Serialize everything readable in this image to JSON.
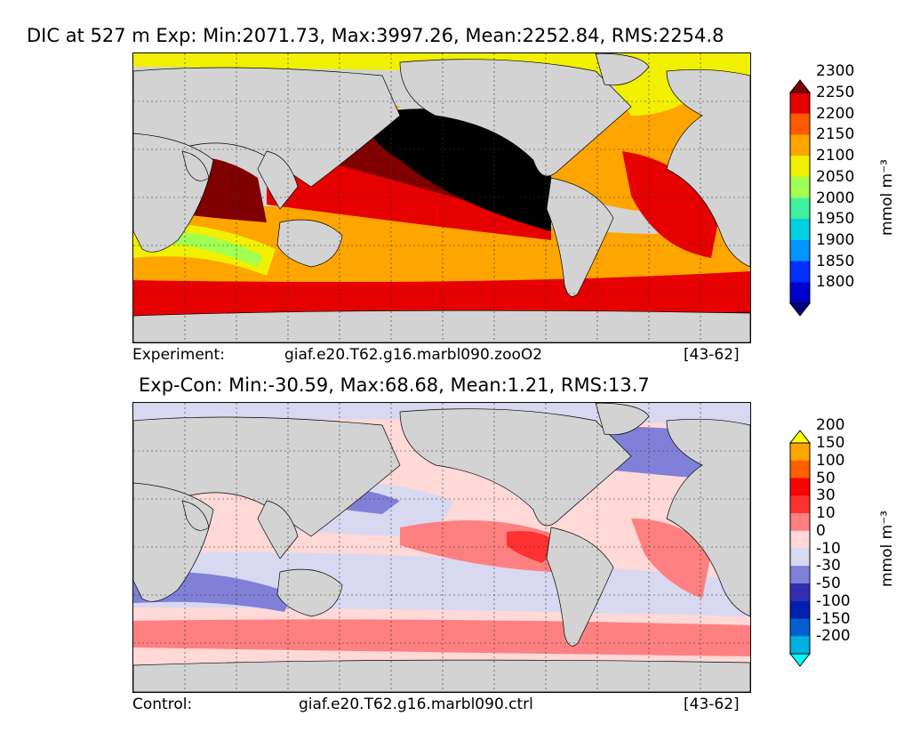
{
  "panels": [
    {
      "title": "DIC at 527 m Exp: Min:2071.73, Max:3997.26, Mean:2252.84, RMS:2254.8",
      "caption_label": "Experiment:",
      "caption_case": "giaf.e20.T62.g16.marbl090.zooO2",
      "caption_years": "[43-62]",
      "colorbar": {
        "levels": [
          "1800",
          "1850",
          "1900",
          "1950",
          "2000",
          "2050",
          "2100",
          "2150",
          "2200",
          "2250",
          "2300"
        ],
        "colors": [
          "#000080",
          "#0000cd",
          "#0030ff",
          "#0095ff",
          "#00cfe0",
          "#40f0a0",
          "#a0ff50",
          "#f0f000",
          "#ffa500",
          "#ff5a00",
          "#e60000",
          "#800000"
        ],
        "units": "mmol m⁻³"
      }
    },
    {
      "title": "Exp-Con: Min:-30.59, Max:68.68, Mean:1.21, RMS:13.7",
      "caption_label": "Control:",
      "caption_case": "giaf.e20.T62.g16.marbl090.ctrl",
      "caption_years": "[43-62]",
      "colorbar": {
        "levels": [
          "-200",
          "-150",
          "-100",
          "-50",
          "-30",
          "-10",
          "0",
          "10",
          "30",
          "50",
          "100",
          "150",
          "200"
        ],
        "colors": [
          "#00ffff",
          "#00b0e0",
          "#0060d0",
          "#0020b0",
          "#3030b0",
          "#8080d8",
          "#d8d8f0",
          "#ffd8d8",
          "#ff8080",
          "#ff3030",
          "#ff0000",
          "#ff6000",
          "#ffa500",
          "#ffff00"
        ],
        "units": "mmol m⁻³"
      }
    }
  ]
}
